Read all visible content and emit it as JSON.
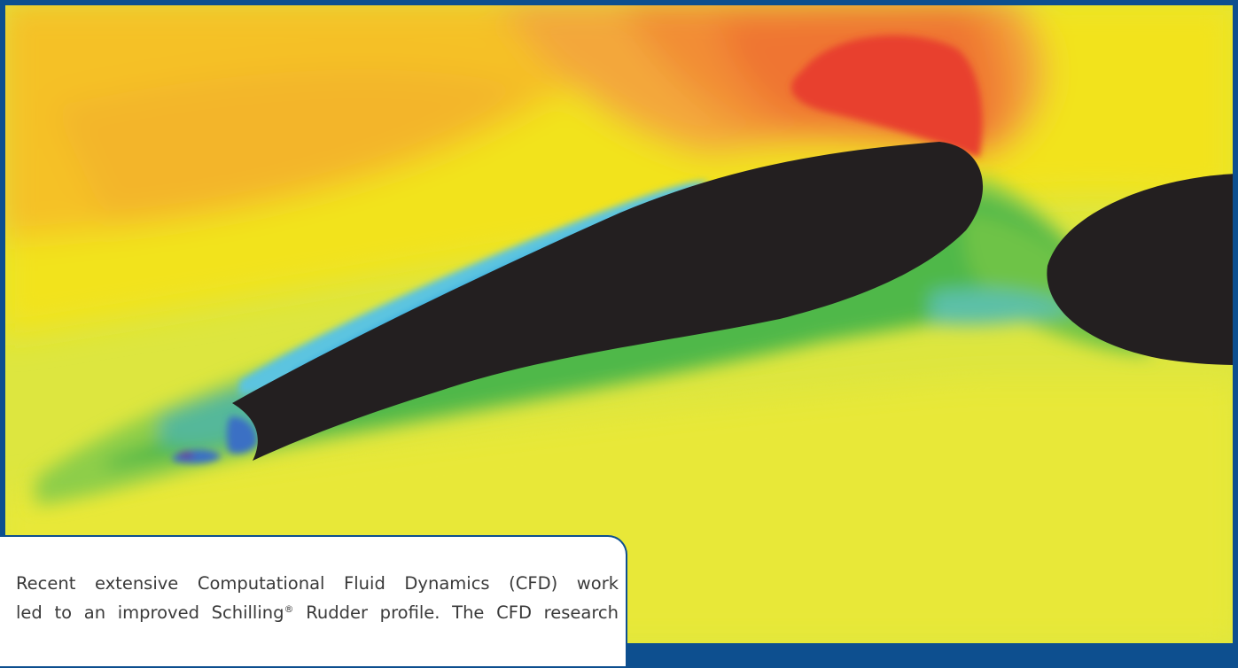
{
  "caption": {
    "line1": "Recent extensive Computational Fluid Dynamics (CFD) work",
    "line2_before": "led to an improved Schilling",
    "registered": "®",
    "line2_after": " Rudder profile. The CFD research"
  },
  "colors": {
    "frame": "#0d4f8f",
    "rudder": "#231f20",
    "high_pressure": "#e8402d",
    "low_pressure": "#3a6fc4"
  }
}
